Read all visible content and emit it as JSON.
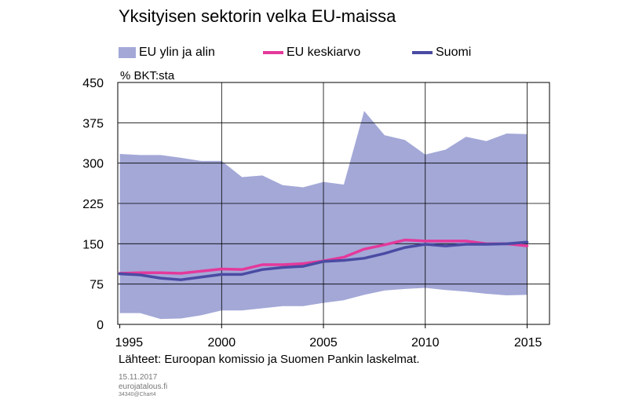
{
  "chart_data": {
    "type": "line",
    "title": "Yksityisen sektorin velka EU-maissa",
    "ylabel": "% BKT:sta",
    "xlabel": "",
    "ylim": [
      0,
      450
    ],
    "xlim": [
      1994.9,
      2016.1
    ],
    "yticks": [
      0,
      75,
      150,
      225,
      300,
      375,
      450
    ],
    "xticks": [
      1995,
      2000,
      2005,
      2010,
      2015
    ],
    "grid": true,
    "legend_position": "top",
    "x": [
      1995,
      1996,
      1997,
      1998,
      1999,
      2000,
      2001,
      2002,
      2003,
      2004,
      2005,
      2006,
      2007,
      2008,
      2009,
      2010,
      2011,
      2012,
      2013,
      2014,
      2015
    ],
    "band": {
      "name": "EU ylin ja alin",
      "color": "#a3a8d7",
      "upper": [
        317,
        315,
        315,
        310,
        304,
        304,
        274,
        277,
        259,
        255,
        265,
        260,
        397,
        352,
        343,
        316,
        325,
        349,
        341,
        355,
        354
      ],
      "lower": [
        21,
        21,
        10,
        11,
        17,
        26,
        26,
        30,
        34,
        34,
        40,
        45,
        55,
        63,
        66,
        68,
        64,
        61,
        57,
        54,
        55
      ]
    },
    "series": [
      {
        "name": "EU keskiarvo",
        "color": "#e4399b",
        "values": [
          95,
          96,
          96,
          95,
          99,
          103,
          102,
          111,
          111,
          113,
          118,
          125,
          140,
          148,
          157,
          155,
          155,
          155,
          150,
          150,
          146
        ]
      },
      {
        "name": "Suomi",
        "color": "#4a4ba3",
        "values": [
          94,
          92,
          86,
          83,
          88,
          93,
          93,
          102,
          106,
          108,
          117,
          119,
          123,
          132,
          143,
          149,
          146,
          149,
          149,
          150,
          153
        ]
      }
    ]
  },
  "footer": {
    "source": "Lähteet: Euroopan komissio ja Suomen Pankin laskelmat.",
    "date": "15.11.2017",
    "site": "eurojatalous.fi",
    "code": "34340@Chart4"
  }
}
